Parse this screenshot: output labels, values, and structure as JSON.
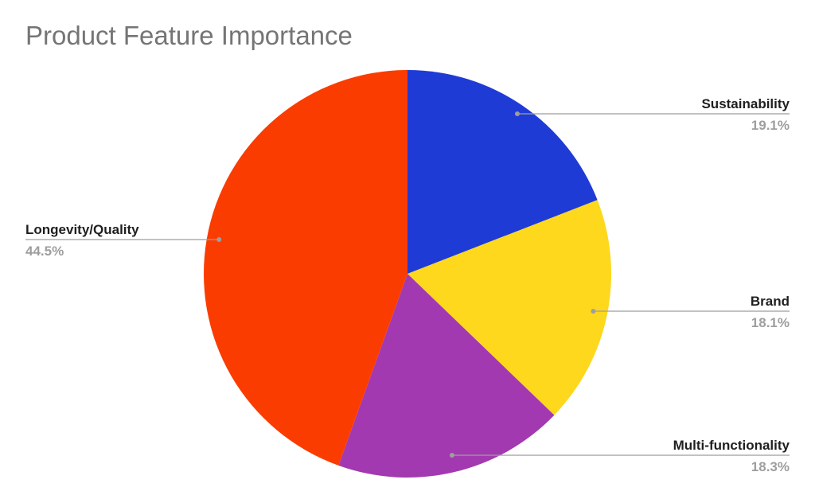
{
  "chart_data": {
    "type": "pie",
    "title": "Product Feature Importance",
    "slices": [
      {
        "label": "Sustainability",
        "value": 19.1,
        "percent_label": "19.1%",
        "color": "#1f3bd6"
      },
      {
        "label": "Brand",
        "value": 18.1,
        "percent_label": "18.1%",
        "color": "#fdd81c"
      },
      {
        "label": "Multi-functionality",
        "value": 18.3,
        "percent_label": "18.3%",
        "color": "#a239b0"
      },
      {
        "label": "Longevity/Quality",
        "value": 44.5,
        "percent_label": "44.5%",
        "color": "#fb3c00"
      }
    ],
    "start_angle_deg": 0,
    "direction": "clockwise",
    "legend": "none",
    "labels": "outside with leader lines"
  }
}
